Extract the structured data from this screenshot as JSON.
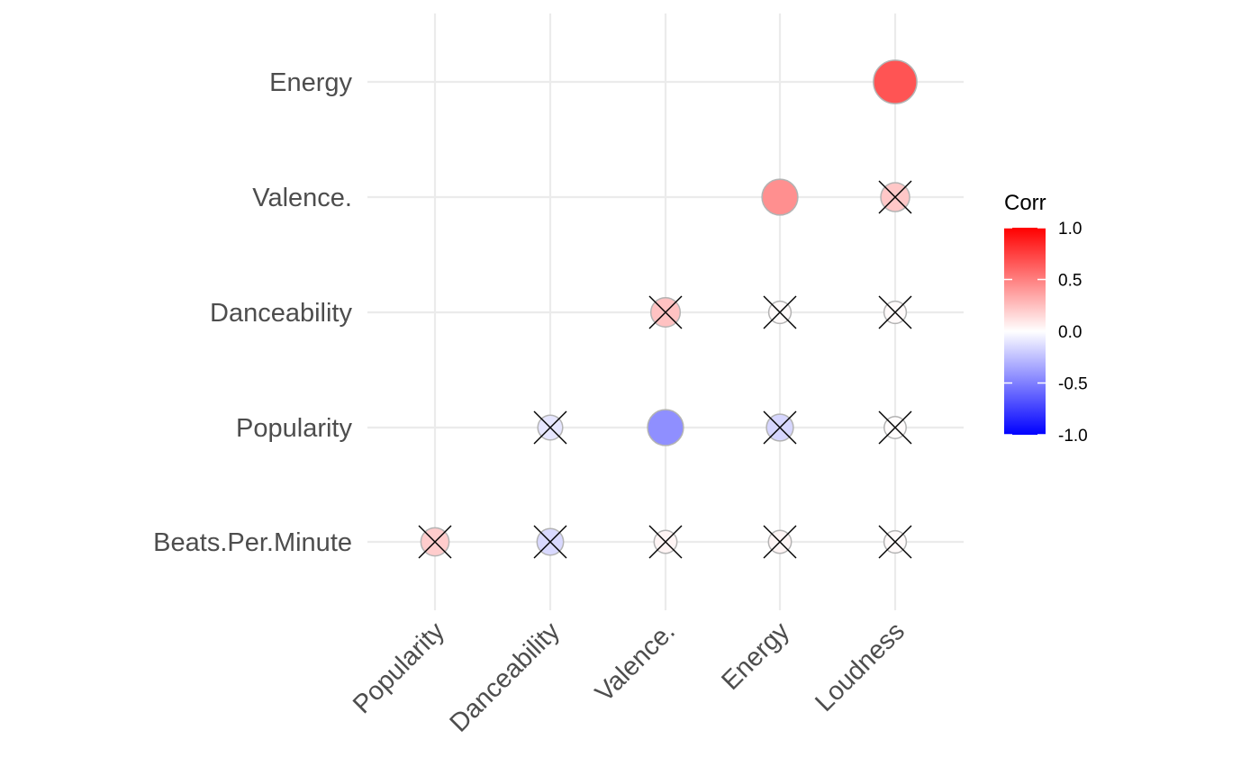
{
  "chart_data": {
    "type": "correlation-matrix",
    "style": "circle",
    "x_labels": [
      "Popularity",
      "Danceability",
      "Valence.",
      "Energy",
      "Loudness"
    ],
    "y_labels": [
      "Beats.Per.Minute",
      "Popularity",
      "Danceability",
      "Valence.",
      "Energy"
    ],
    "grid": true,
    "cells": [
      {
        "x": "Popularity",
        "y": "Beats.Per.Minute",
        "value": 0.2,
        "insignificant": true
      },
      {
        "x": "Danceability",
        "y": "Beats.Per.Minute",
        "value": -0.15,
        "insignificant": true
      },
      {
        "x": "Valence.",
        "y": "Beats.Per.Minute",
        "value": 0.04,
        "insignificant": true
      },
      {
        "x": "Energy",
        "y": "Beats.Per.Minute",
        "value": 0.04,
        "insignificant": true
      },
      {
        "x": "Loudness",
        "y": "Beats.Per.Minute",
        "value": 0.02,
        "insignificant": true
      },
      {
        "x": "Danceability",
        "y": "Popularity",
        "value": -0.1,
        "insignificant": true
      },
      {
        "x": "Valence.",
        "y": "Popularity",
        "value": -0.44,
        "insignificant": false
      },
      {
        "x": "Energy",
        "y": "Popularity",
        "value": -0.16,
        "insignificant": true
      },
      {
        "x": "Loudness",
        "y": "Popularity",
        "value": 0.01,
        "insignificant": true
      },
      {
        "x": "Valence.",
        "y": "Danceability",
        "value": 0.24,
        "insignificant": true
      },
      {
        "x": "Energy",
        "y": "Danceability",
        "value": 0.02,
        "insignificant": true
      },
      {
        "x": "Loudness",
        "y": "Danceability",
        "value": 0.02,
        "insignificant": true
      },
      {
        "x": "Energy",
        "y": "Valence.",
        "value": 0.44,
        "insignificant": false
      },
      {
        "x": "Loudness",
        "y": "Valence.",
        "value": 0.22,
        "insignificant": true
      },
      {
        "x": "Loudness",
        "y": "Energy",
        "value": 0.67,
        "insignificant": false
      }
    ],
    "legend": {
      "title": "Corr",
      "breaks": [
        1.0,
        0.5,
        0.0,
        -0.5,
        -1.0
      ],
      "labels": [
        "1.0",
        "0.5",
        "0.0",
        "-0.5",
        "-1.0"
      ],
      "placement": "right"
    },
    "colors": {
      "low": "#0000ff",
      "mid": "#ffffff",
      "high": "#ff0000"
    }
  }
}
